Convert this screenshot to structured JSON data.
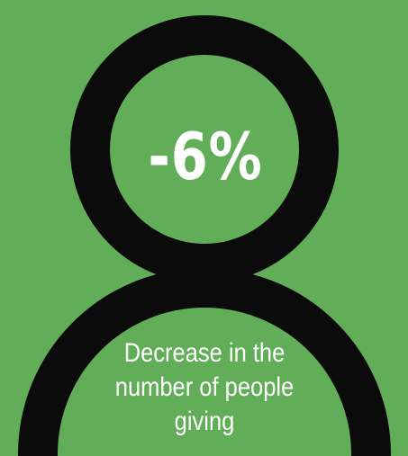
{
  "infographic": {
    "stat_value": "-6%",
    "stat_caption": "Decrease in the number of people giving"
  },
  "icon": {
    "name": "person-icon",
    "stroke_color": "#0b0b0b",
    "background_color": "#62ad58",
    "text_color": "#ffffff"
  }
}
